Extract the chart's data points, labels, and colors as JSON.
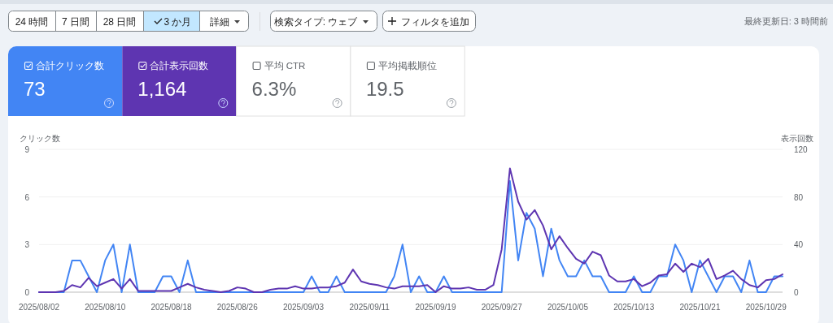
{
  "chart_data": [
    {
      "type": "other",
      "annotations": [
        "24 時間",
        "7 日間",
        "28 日間",
        "3 か月",
        "詳細",
        "検索タイプ: ウェブ",
        "フィルタを追加",
        "最終更新日: 3 時間前"
      ],
      "categories": [
        "合計クリック数",
        "合計表示回数",
        "平均 CTR",
        "平均掲載順位"
      ],
      "value_labels": [
        "73",
        "1,164",
        "6.3%",
        "19.5"
      ],
      "colors": [
        "#4285f4",
        "#5e35b1",
        "#ffffff",
        "#ffffff"
      ]
    },
    {
      "type": "line",
      "ylabel": "クリック数",
      "y2label": "表示回数",
      "x": [
        "2025-08-02",
        "2025-08-03",
        "2025-08-04",
        "2025-08-05",
        "2025-08-06",
        "2025-08-07",
        "2025-08-08",
        "2025-08-09",
        "2025-08-10",
        "2025-08-11",
        "2025-08-12",
        "2025-08-13",
        "2025-08-14",
        "2025-08-15",
        "2025-08-16",
        "2025-08-17",
        "2025-08-18",
        "2025-08-19",
        "2025-08-20",
        "2025-08-21",
        "2025-08-22",
        "2025-08-23",
        "2025-08-24",
        "2025-08-25",
        "2025-08-26",
        "2025-08-27",
        "2025-08-28",
        "2025-08-29",
        "2025-08-30",
        "2025-08-31",
        "2025-09-01",
        "2025-09-02",
        "2025-09-03",
        "2025-09-04",
        "2025-09-05",
        "2025-09-06",
        "2025-09-07",
        "2025-09-08",
        "2025-09-09",
        "2025-09-10",
        "2025-09-11",
        "2025-09-12",
        "2025-09-13",
        "2025-09-14",
        "2025-09-15",
        "2025-09-16",
        "2025-09-17",
        "2025-09-18",
        "2025-09-19",
        "2025-09-20",
        "2025-09-21",
        "2025-09-22",
        "2025-09-23",
        "2025-09-24",
        "2025-09-25",
        "2025-09-26",
        "2025-09-27",
        "2025-09-28",
        "2025-09-29",
        "2025-09-30",
        "2025-10-01",
        "2025-10-02",
        "2025-10-03",
        "2025-10-04",
        "2025-10-05",
        "2025-10-06",
        "2025-10-07",
        "2025-10-08",
        "2025-10-09",
        "2025-10-10",
        "2025-10-11",
        "2025-10-12",
        "2025-10-13",
        "2025-10-14",
        "2025-10-15",
        "2025-10-16",
        "2025-10-17",
        "2025-10-18",
        "2025-10-19",
        "2025-10-20",
        "2025-10-21",
        "2025-10-22",
        "2025-10-23",
        "2025-10-24",
        "2025-10-25",
        "2025-10-26",
        "2025-10-27",
        "2025-10-28",
        "2025-10-29",
        "2025-10-30",
        "2025-10-31"
      ],
      "series": [
        {
          "color": "#4285f4",
          "values": [
            0,
            0,
            0,
            0,
            2,
            2,
            1,
            0,
            2,
            3,
            0,
            3,
            0,
            0,
            0,
            1,
            1,
            0,
            2,
            0,
            0,
            0,
            0,
            0,
            0,
            0,
            0,
            0,
            0,
            0,
            0,
            0,
            0,
            1,
            0,
            0,
            1,
            0,
            0,
            0,
            0,
            0,
            0,
            1,
            3,
            0,
            1,
            0,
            0,
            1,
            0,
            0,
            0,
            0,
            0,
            0,
            0,
            7,
            2,
            5,
            4,
            1,
            4,
            2,
            1,
            1,
            2,
            1,
            1,
            0,
            0,
            0,
            1,
            0,
            0,
            1,
            1,
            3,
            2,
            0,
            2,
            1,
            0,
            1,
            1,
            0,
            2,
            0,
            0,
            1,
            1
          ]
        },
        {
          "color": "#5e35b1",
          "axis": "y2",
          "values": [
            0,
            0,
            0,
            1,
            6,
            4,
            12,
            5,
            8,
            11,
            3,
            11,
            1,
            1,
            1,
            1,
            1,
            4,
            7,
            4,
            2,
            1,
            0,
            1,
            4,
            3,
            0,
            0,
            2,
            3,
            3,
            5,
            3,
            3,
            4,
            4,
            5,
            8,
            19,
            9,
            7,
            6,
            4,
            3,
            5,
            5,
            5,
            6,
            0,
            5,
            3,
            3,
            4,
            2,
            2,
            6,
            36,
            104,
            76,
            61,
            69,
            56,
            36,
            47,
            37,
            28,
            24,
            34,
            31,
            14,
            9,
            9,
            11,
            5,
            8,
            14,
            15,
            24,
            17,
            24,
            21,
            28,
            11,
            14,
            18,
            11,
            6,
            4,
            10,
            11,
            15
          ]
        }
      ],
      "xlim": [
        "2025-08-02",
        "2025-10-31"
      ],
      "xticks": [
        {
          "value": "2025-08-02",
          "label": "2025/08/02"
        },
        {
          "value": "2025-08-10",
          "label": "2025/08/10"
        },
        {
          "value": "2025-08-18",
          "label": "2025/08/18"
        },
        {
          "value": "2025-08-26",
          "label": "2025/08/26"
        },
        {
          "value": "2025-09-03",
          "label": "2025/09/03"
        },
        {
          "value": "2025-09-11",
          "label": "2025/09/11"
        },
        {
          "value": "2025-09-19",
          "label": "2025/09/19"
        },
        {
          "value": "2025-09-27",
          "label": "2025/09/27"
        },
        {
          "value": "2025-10-05",
          "label": "2025/10/05"
        },
        {
          "value": "2025-10-13",
          "label": "2025/10/13"
        },
        {
          "value": "2025-10-21",
          "label": "2025/10/21"
        },
        {
          "value": "2025-10-29",
          "label": "2025/10/29"
        }
      ],
      "ylim": [
        0,
        9
      ],
      "yticks": [
        0,
        3,
        6,
        9
      ],
      "y2lim": [
        0,
        120
      ],
      "y2ticks": [
        0,
        40,
        80,
        120
      ],
      "grid": "y"
    }
  ]
}
